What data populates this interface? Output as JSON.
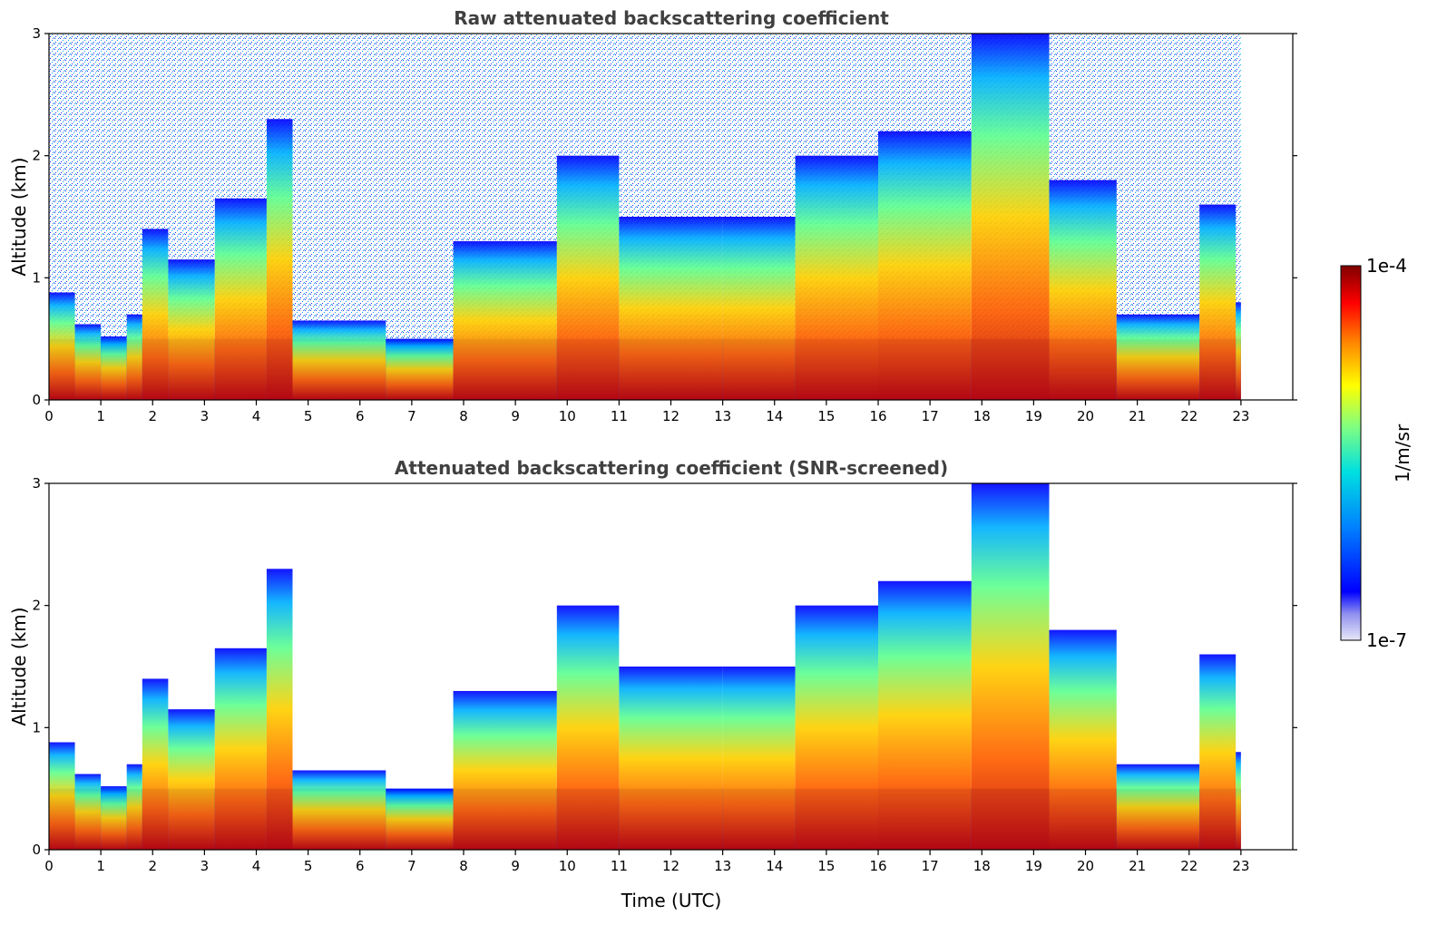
{
  "chart_data": [
    {
      "type": "heatmap",
      "title": "Raw attenuated backscattering coefficient",
      "xlabel": "",
      "ylabel": "Altitude (km)",
      "xlim": [
        0,
        24
      ],
      "ylim": [
        0,
        3
      ],
      "xticks": [
        "0",
        "1",
        "2",
        "3",
        "4",
        "5",
        "6",
        "7",
        "8",
        "9",
        "10",
        "11",
        "12",
        "13",
        "14",
        "15",
        "16",
        "17",
        "18",
        "19",
        "20",
        "21",
        "22",
        "23"
      ],
      "yticks": [
        "0",
        "1",
        "2",
        "3"
      ],
      "data_end_time": 23,
      "features": [
        {
          "t": 0.0,
          "top": 0.88,
          "peak": 0.25
        },
        {
          "t": 0.5,
          "top": 0.62,
          "peak": 0.15
        },
        {
          "t": 1.0,
          "top": 0.52,
          "peak": 0.12
        },
        {
          "t": 1.5,
          "top": 0.7,
          "peak": 0.15
        },
        {
          "t": 1.8,
          "top": 1.4,
          "peak": 0.3
        },
        {
          "t": 2.3,
          "top": 1.15,
          "peak": 0.3
        },
        {
          "t": 3.2,
          "top": 1.65,
          "peak": 0.4
        },
        {
          "t": 4.2,
          "top": 2.3,
          "peak": 0.5
        },
        {
          "t": 4.7,
          "top": 0.65,
          "peak": 0.4
        },
        {
          "t": 6.5,
          "top": 0.5,
          "peak": 0.2
        },
        {
          "t": 7.8,
          "top": 1.3,
          "peak": 0.4
        },
        {
          "t": 9.8,
          "top": 2.0,
          "peak": 0.6
        },
        {
          "t": 11.0,
          "top": 1.5,
          "peak": 0.5
        },
        {
          "t": 13.0,
          "top": 1.5,
          "peak": 0.5
        },
        {
          "t": 14.4,
          "top": 2.0,
          "peak": 0.5
        },
        {
          "t": 16.0,
          "top": 2.2,
          "peak": 0.5
        },
        {
          "t": 17.8,
          "top": 3.0,
          "peak": 2.5
        },
        {
          "t": 19.3,
          "top": 1.8,
          "peak": 1.7
        },
        {
          "t": 20.6,
          "top": 0.7,
          "peak": 0.5
        },
        {
          "t": 22.2,
          "top": 1.6,
          "peak": 1.5
        },
        {
          "t": 22.9,
          "top": 0.8,
          "peak": 0.4
        }
      ]
    },
    {
      "type": "heatmap",
      "title": "Attenuated backscattering coefficient (SNR-screened)",
      "xlabel": "Time (UTC)",
      "ylabel": "Altitude (km)",
      "xlim": [
        0,
        24
      ],
      "ylim": [
        0,
        3
      ],
      "xticks": [
        "0",
        "1",
        "2",
        "3",
        "4",
        "5",
        "6",
        "7",
        "8",
        "9",
        "10",
        "11",
        "12",
        "13",
        "14",
        "15",
        "16",
        "17",
        "18",
        "19",
        "20",
        "21",
        "22",
        "23"
      ],
      "yticks": [
        "0",
        "1",
        "2",
        "3"
      ],
      "data_end_time": 23
    }
  ],
  "colorbar": {
    "label": "1/m/sr",
    "max_label": "1e-4",
    "min_label": "1e-7",
    "vmin": 1e-07,
    "vmax": 0.0001,
    "scale": "log",
    "colormap": [
      "#e8e8f8",
      "#0000ff",
      "#0080ff",
      "#00e0e0",
      "#80ff80",
      "#ffff00",
      "#ff8000",
      "#ff0000",
      "#800000"
    ]
  }
}
